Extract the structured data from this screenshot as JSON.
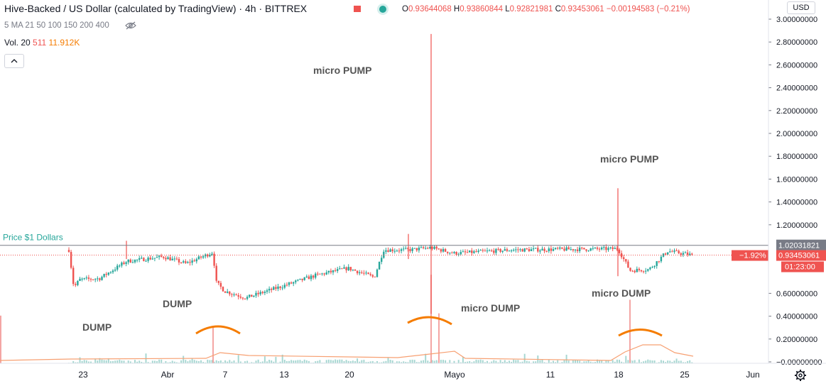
{
  "header": {
    "title": "Hive-Backed / US Dollar (calculated by TradingView) · 4h · BITTREX",
    "open_label": "O",
    "open": "0.93644068",
    "high_label": "H",
    "high": "0.93860844",
    "low_label": "L",
    "low": "0.92821981",
    "close_label": "C",
    "close": "0.93453061",
    "change": "−0.00194583 (−0.21%)"
  },
  "indicators": {
    "ma_legend": "5 MA 21 50 100 150 200 400",
    "volume_label": "Vol. 20",
    "volume_value": "511",
    "volume_ma": "11.912K"
  },
  "axis": {
    "currency": "USD",
    "ticks": [
      "3.00000000",
      "2.80000000",
      "2.60000000",
      "2.40000000",
      "2.20000000",
      "2.00000000",
      "1.80000000",
      "1.60000000",
      "1.40000000",
      "1.20000000",
      "0.60000000",
      "0.40000000",
      "0.20000000",
      "−0.00000000"
    ],
    "x_ticks": [
      "23",
      "Abr",
      "7",
      "13",
      "20",
      "Mayo",
      "11",
      "18",
      "25",
      "Jun"
    ]
  },
  "chart_data": {
    "type": "candlestick",
    "x_range": [
      "Mar 23",
      "Jun 1"
    ],
    "ylim": [
      0,
      3.0
    ],
    "price_line": {
      "label": "Price $1 Dollars",
      "value": "1.02031821",
      "color": "#787b86"
    },
    "last_price": {
      "change": "−1.92%",
      "value": "0.93453061",
      "countdown": "01:23:00",
      "color": "#ef5350"
    },
    "path_points": [
      {
        "date": "Mar 22",
        "price": 0.98
      },
      {
        "date": "Mar 23",
        "price": 0.65
      },
      {
        "date": "Mar 24",
        "price": 0.72
      },
      {
        "date": "Mar 27",
        "price": 0.73
      },
      {
        "date": "Mar 29",
        "price": 0.88
      },
      {
        "date": "Apr 1",
        "price": 0.92
      },
      {
        "date": "Apr 4",
        "price": 0.86
      },
      {
        "date": "Apr 6",
        "price": 0.96
      },
      {
        "date": "Apr 6 late",
        "price": 0.7
      },
      {
        "date": "Apr 8",
        "price": 0.62
      },
      {
        "date": "Apr 10",
        "price": 0.56
      },
      {
        "date": "Apr 13",
        "price": 0.66
      },
      {
        "date": "Apr 17",
        "price": 0.76
      },
      {
        "date": "Apr 20",
        "price": 0.82
      },
      {
        "date": "Apr 22",
        "price": 0.74
      },
      {
        "date": "Apr 23",
        "price": 0.98
      },
      {
        "date": "Apr 27",
        "price": 0.98
      },
      {
        "date": "Apr 30",
        "price": 1.0
      },
      {
        "date": "May 3",
        "price": 0.95
      },
      {
        "date": "May 9",
        "price": 0.98
      },
      {
        "date": "May 18",
        "price": 0.99
      },
      {
        "date": "May 19",
        "price": 0.8
      },
      {
        "date": "May 22",
        "price": 0.81
      },
      {
        "date": "May 24",
        "price": 0.97
      },
      {
        "date": "May 26",
        "price": 0.935
      }
    ],
    "wick_spikes": [
      {
        "date": "Apr 30",
        "high": 2.87,
        "low": 0.42
      },
      {
        "date": "May 18",
        "high": 1.52,
        "low": 0.75
      },
      {
        "date": "Mar 29",
        "high": 1.06,
        "low": 0.9
      },
      {
        "date": "Apr 27",
        "high": 1.12,
        "low": 0.9
      }
    ],
    "volume_spikes": [
      {
        "date": "Apr 6",
        "value": 0.32
      },
      {
        "date": "Apr 30",
        "value": 0.78
      },
      {
        "date": "May 1",
        "value": 0.44
      },
      {
        "date": "May 19",
        "value": 0.56
      },
      {
        "date": "May 20",
        "value": 0.42
      }
    ],
    "annotations": [
      "micro PUMP",
      "micro PUMP",
      "DUMP",
      "DUMP",
      "micro DUMP",
      "micro DUMP"
    ]
  }
}
